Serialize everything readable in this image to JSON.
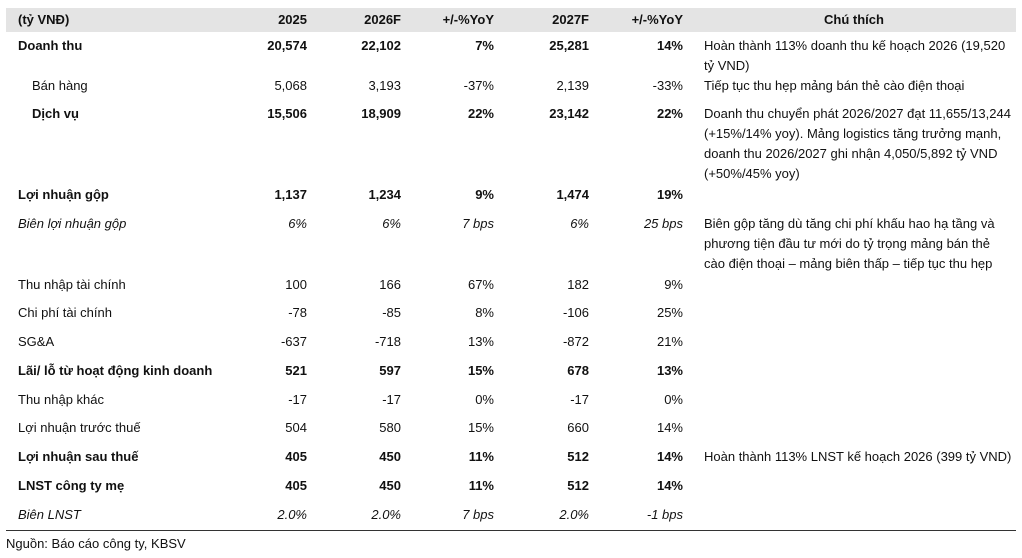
{
  "table": {
    "header": [
      "(tỷ VNĐ)",
      "2025",
      "2026F",
      "+/-%YoY",
      "2027F",
      "+/-%YoY",
      "Chú thích"
    ],
    "rows": [
      [
        "Doanh thu",
        "20,574",
        "22,102",
        "7%",
        "25,281",
        "14%",
        "Hoàn thành 113% doanh thu kế hoạch 2026 (19,520 tỷ VND)"
      ],
      [
        "Bán hàng",
        "5,068",
        "3,193",
        "-37%",
        "2,139",
        "-33%",
        "Tiếp tục thu hẹp mảng bán thẻ cào điện thoại"
      ],
      [
        "Dịch vụ",
        "15,506",
        "18,909",
        "22%",
        "23,142",
        "22%",
        "Doanh thu chuyển phát 2026/2027 đạt 11,655/13,244 (+15%/14% yoy). Mảng logistics tăng trưởng mạnh, doanh thu 2026/2027 ghi nhận 4,050/5,892 tỷ VND (+50%/45% yoy)"
      ],
      [
        "Lợi nhuận gộp",
        "1,137",
        "1,234",
        "9%",
        "1,474",
        "19%",
        ""
      ],
      [
        "Biên lợi nhuận gộp",
        "6%",
        "6%",
        "7 bps",
        "6%",
        "25 bps",
        "Biên gộp tăng dù tăng chi phí khấu hao hạ tầng và phương tiện đầu tư mới do tỷ trọng mảng bán thẻ cào điện thoại – mảng biên thấp – tiếp tục thu hẹp"
      ],
      [
        "Thu nhập tài chính",
        "100",
        "166",
        "67%",
        "182",
        "9%",
        ""
      ],
      [
        "Chi phí tài chính",
        "-78",
        "-85",
        "8%",
        "-106",
        "25%",
        ""
      ],
      [
        "SG&A",
        "-637",
        "-718",
        "13%",
        "-872",
        "21%",
        ""
      ],
      [
        "Lãi/ lỗ từ hoạt động kinh doanh",
        "521",
        "597",
        "15%",
        "678",
        "13%",
        ""
      ],
      [
        "Thu nhập khác",
        "-17",
        "-17",
        "0%",
        "-17",
        "0%",
        ""
      ],
      [
        "Lợi nhuận trước thuế",
        "504",
        "580",
        "15%",
        "660",
        "14%",
        ""
      ],
      [
        "Lợi nhuận sau thuế",
        "405",
        "450",
        "11%",
        "512",
        "14%",
        "Hoàn thành 113% LNST kế hoạch 2026 (399 tỷ VND)"
      ],
      [
        "LNST công ty mẹ",
        "405",
        "450",
        "11%",
        "512",
        "14%",
        ""
      ],
      [
        "Biên LNST",
        "2.0%",
        "2.0%",
        "7 bps",
        "2.0%",
        "-1 bps",
        ""
      ]
    ]
  },
  "source": "Nguồn: Báo cáo công ty, KBSV"
}
